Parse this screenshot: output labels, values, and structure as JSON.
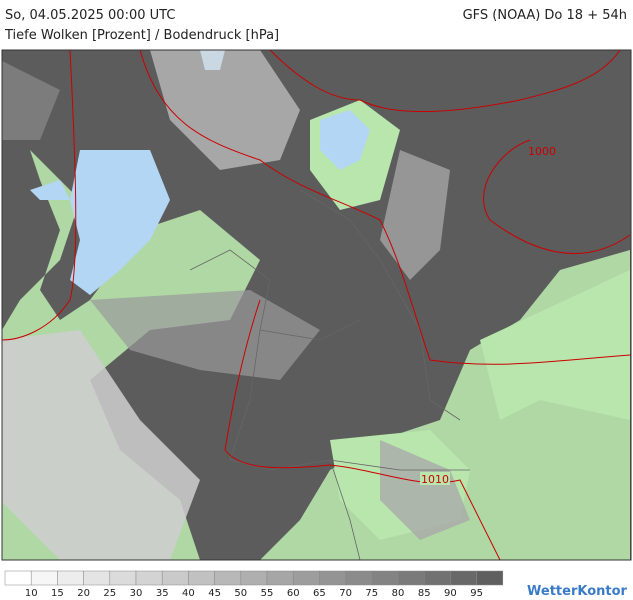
{
  "header": {
    "left": "So, 04.05.2025 00:00 UTC",
    "right": "GFS (NOAA) Do 18 + 54h",
    "subtitle": "Tiefe Wolken [Prozent] / Bodendruck [hPa]"
  },
  "map": {
    "isobar_labels": [
      "1000",
      "1010"
    ]
  },
  "legend": {
    "labels": [
      10,
      15,
      20,
      25,
      30,
      35,
      40,
      45,
      50,
      55,
      60,
      65,
      70,
      75,
      80,
      85,
      90,
      95
    ]
  },
  "footer": {
    "brand": "WetterKontor"
  }
}
